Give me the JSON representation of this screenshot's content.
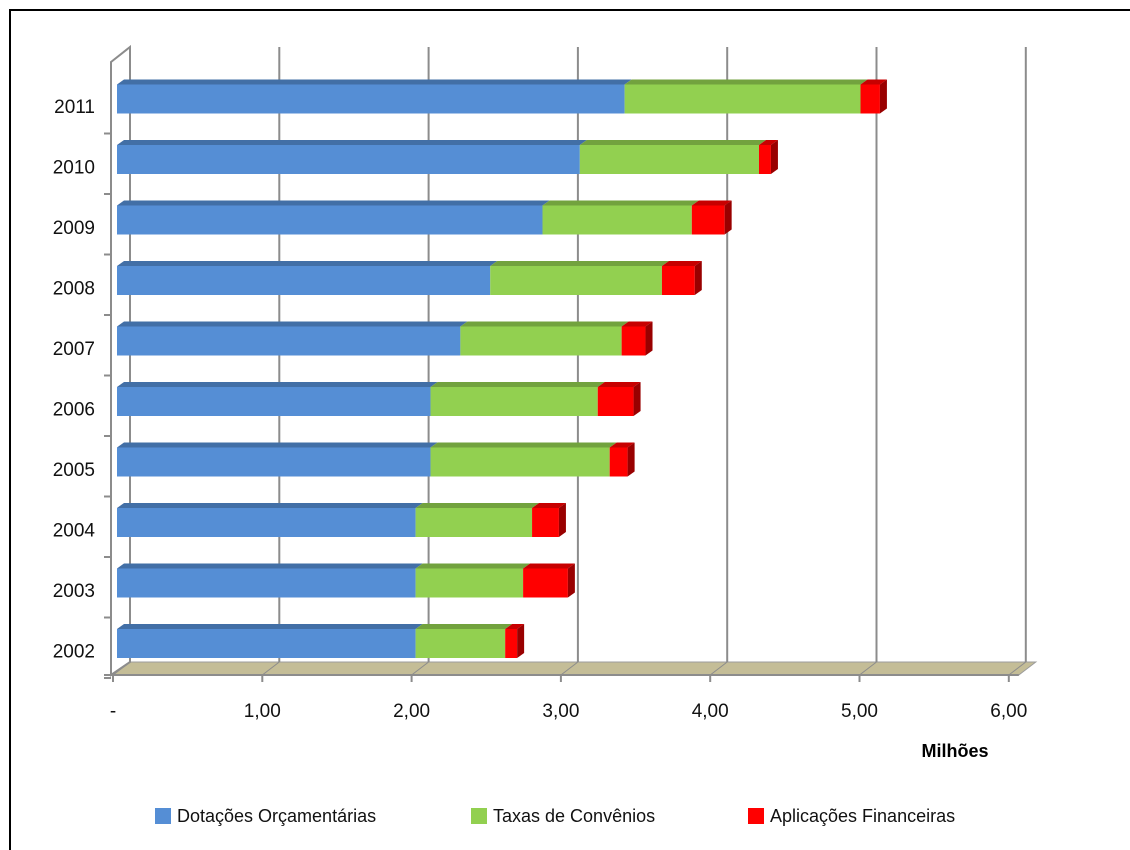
{
  "chart_data": {
    "type": "bar",
    "orientation": "horizontal",
    "stacked": true,
    "three_d": true,
    "categories": [
      "2002",
      "2003",
      "2004",
      "2005",
      "2006",
      "2007",
      "2008",
      "2009",
      "2010",
      "2011"
    ],
    "series": [
      {
        "name": "Dotações Orçamentárias",
        "color": "#558ed5",
        "values": [
          2.0,
          2.0,
          2.0,
          2.1,
          2.1,
          2.3,
          2.5,
          2.85,
          3.1,
          3.4
        ]
      },
      {
        "name": "Taxas de Convênios",
        "color": "#92d050",
        "values": [
          0.6,
          0.72,
          0.78,
          1.2,
          1.12,
          1.08,
          1.15,
          1.0,
          1.2,
          1.58
        ]
      },
      {
        "name": "Aplicações Financeiras",
        "color": "#ff0000",
        "values": [
          0.08,
          0.3,
          0.18,
          0.12,
          0.24,
          0.16,
          0.22,
          0.22,
          0.08,
          0.13
        ]
      }
    ],
    "x_ticks": [
      "-",
      "1,00",
      "2,00",
      "3,00",
      "4,00",
      "5,00",
      "6,00"
    ],
    "xlim": [
      0,
      6
    ],
    "units_label": "Milhões",
    "grid": true,
    "legend_position": "bottom"
  }
}
